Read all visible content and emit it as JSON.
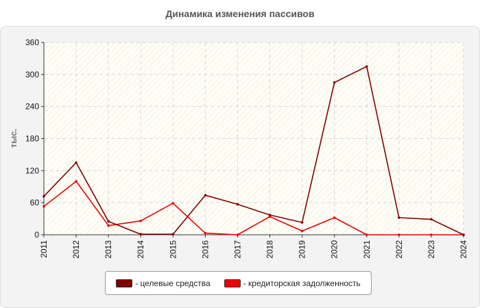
{
  "chart_data": {
    "type": "line",
    "title": "Динамика изменения пассивов",
    "ylabel": "тыс.",
    "xlabel": "",
    "ylim": [
      0,
      360
    ],
    "yticks": [
      "0",
      "60",
      "120",
      "180",
      "240",
      "300",
      "360"
    ],
    "categories": [
      "2011",
      "2012",
      "2013",
      "2014",
      "2015",
      "2016",
      "2017",
      "2018",
      "2019",
      "2020",
      "2021",
      "2022",
      "2023",
      "2024"
    ],
    "grid": true,
    "legend_position": "bottom",
    "series": [
      {
        "name": "- целевые средства",
        "color": "#800000",
        "values": [
          72,
          135,
          25,
          1,
          1,
          74,
          57,
          37,
          23,
          285,
          315,
          32,
          29,
          0
        ]
      },
      {
        "name": "- кредиторская задолженность",
        "color": "#ee0000",
        "values": [
          53,
          100,
          17,
          26,
          59,
          3,
          0,
          34,
          7,
          32,
          0,
          0,
          0,
          0
        ]
      }
    ]
  }
}
